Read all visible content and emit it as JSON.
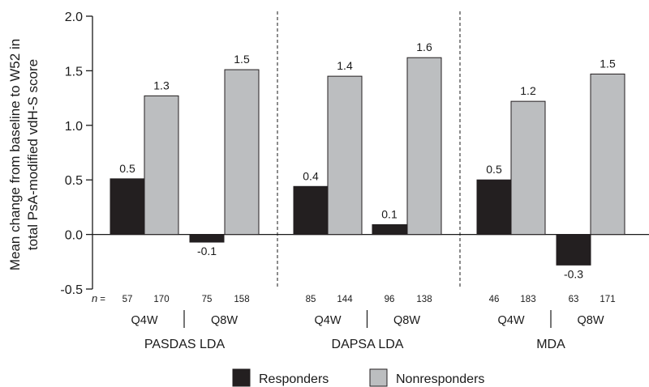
{
  "chart_data": {
    "type": "bar",
    "ylabel_line1": "Mean change from baseline to W52 in",
    "ylabel_line2": "total PsA-modified vdH-S score",
    "ylim": [
      -0.5,
      2.0
    ],
    "yticks": [
      "-0.5",
      "0.0",
      "0.5",
      "1.0",
      "1.5",
      "2.0"
    ],
    "n_prefix": "n",
    "n_equals": "=",
    "series": [
      {
        "name": "Responders",
        "color": "#231f20"
      },
      {
        "name": "Nonresponders",
        "color": "#bcbec0"
      }
    ],
    "groups": [
      {
        "name": "PASDAS LDA",
        "subgroups": [
          {
            "label": "Q4W",
            "values": [
              0.51,
              1.27
            ],
            "value_labels": [
              "0.5",
              "1.3"
            ],
            "n": [
              "57",
              "170"
            ]
          },
          {
            "label": "Q8W",
            "values": [
              -0.07,
              1.51
            ],
            "value_labels": [
              "-0.1",
              "1.5"
            ],
            "n": [
              "75",
              "158"
            ]
          }
        ]
      },
      {
        "name": "DAPSA LDA",
        "subgroups": [
          {
            "label": "Q4W",
            "values": [
              0.44,
              1.45
            ],
            "value_labels": [
              "0.4",
              "1.4"
            ],
            "n": [
              "85",
              "144"
            ]
          },
          {
            "label": "Q8W",
            "values": [
              0.09,
              1.62
            ],
            "value_labels": [
              "0.1",
              "1.6"
            ],
            "n": [
              "96",
              "138"
            ]
          }
        ]
      },
      {
        "name": "MDA",
        "subgroups": [
          {
            "label": "Q4W",
            "values": [
              0.5,
              1.22
            ],
            "value_labels": [
              "0.5",
              "1.2"
            ],
            "n": [
              "46",
              "183"
            ]
          },
          {
            "label": "Q8W",
            "values": [
              -0.28,
              1.47
            ],
            "value_labels": [
              "-0.3",
              "1.5"
            ],
            "n": [
              "63",
              "171"
            ]
          }
        ]
      }
    ],
    "legend_position": "bottom-center",
    "grid": false
  }
}
